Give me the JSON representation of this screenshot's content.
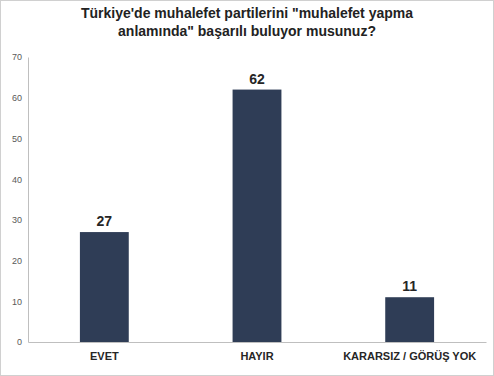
{
  "chart_data": {
    "type": "bar",
    "title": "Türkiye'de muhalefet partilerini \"muhalefet yapma anlamında\" başarılı buluyor musunuz?",
    "categories": [
      "EVET",
      "HAYIR",
      "KARARSIZ / GÖRÜŞ YOK"
    ],
    "values": [
      27,
      62,
      11
    ],
    "color": "#2f3d56",
    "ylim": [
      0,
      70
    ],
    "yticks": [
      0,
      10,
      20,
      30,
      40,
      50,
      60,
      70
    ],
    "grid": false,
    "data_labels": true
  }
}
